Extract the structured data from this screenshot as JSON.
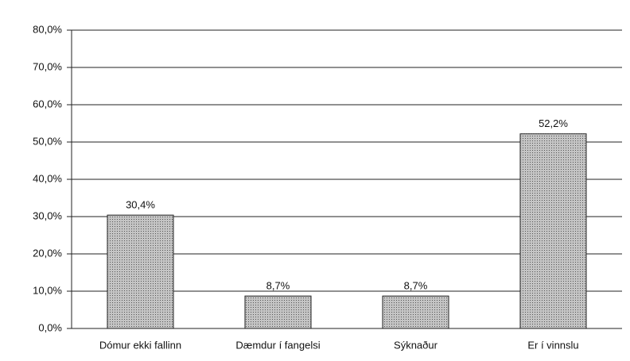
{
  "chart_data": {
    "type": "bar",
    "categories": [
      "Dómur ekki fallinn",
      "Dæmdur í fangelsi",
      "Sýknaður",
      "Er í vinnslu"
    ],
    "values": [
      30.4,
      8.7,
      8.7,
      52.2
    ],
    "value_labels": [
      "30,4%",
      "8,7%",
      "8,7%",
      "52,2%"
    ],
    "color": "#c4c4c4",
    "ylim": [
      0,
      80
    ],
    "yticks": [
      {
        "value": 0,
        "label": "0,0%"
      },
      {
        "value": 10,
        "label": "10,0%"
      },
      {
        "value": 20,
        "label": "20,0%"
      },
      {
        "value": 30,
        "label": "30,0%"
      },
      {
        "value": 40,
        "label": "40,0%"
      },
      {
        "value": 50,
        "label": "50,0%"
      },
      {
        "value": 60,
        "label": "60,0%"
      },
      {
        "value": 70,
        "label": "70,0%"
      },
      {
        "value": 80,
        "label": "80,0%"
      }
    ],
    "grid": true
  }
}
